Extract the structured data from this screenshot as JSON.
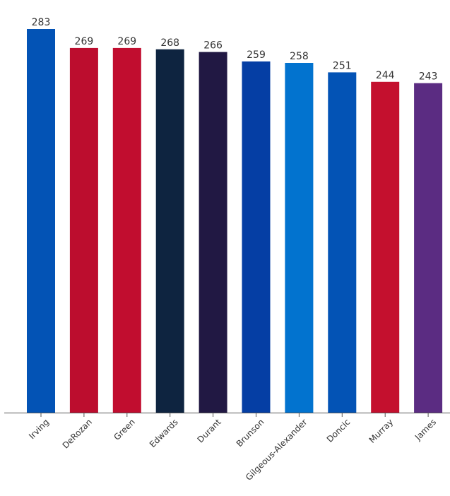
{
  "chart_data": {
    "type": "bar",
    "categories": [
      "Irving",
      "DeRozan",
      "Green",
      "Edwards",
      "Durant",
      "Brunson",
      "Gilgeous-Alexander",
      "Doncic",
      "Murray",
      "James"
    ],
    "values": [
      283,
      269,
      269,
      268,
      266,
      259,
      258,
      251,
      244,
      243
    ],
    "colors": [
      "#0353b5",
      "#bc0d2e",
      "#c10d2f",
      "#0e2440",
      "#211843",
      "#053ea4",
      "#0273cf",
      "#0353b5",
      "#c4102e",
      "#5b2c82"
    ],
    "ylim": [
      0,
      283
    ],
    "grid": false,
    "legend": "none",
    "show_y_axis": false,
    "value_labels": true
  }
}
